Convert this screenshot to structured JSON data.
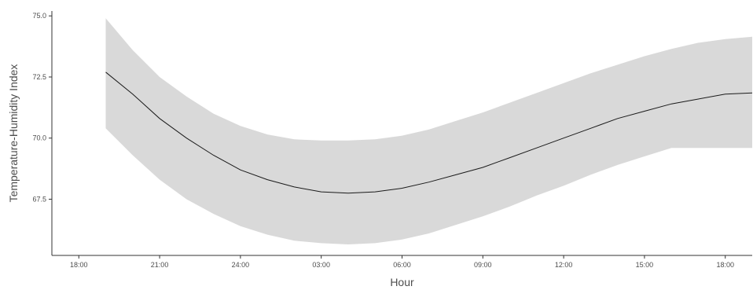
{
  "chart_data": {
    "type": "line",
    "title": "",
    "xlabel": "Hour",
    "ylabel": "Temperature-Humidity Index",
    "x_tick_labels": [
      "18:00",
      "21:00",
      "24:00",
      "03:00",
      "06:00",
      "09:00",
      "12:00",
      "15:00",
      "18:00"
    ],
    "x_tick_hours": [
      0,
      3,
      6,
      9,
      12,
      15,
      18,
      21,
      24
    ],
    "y_ticks": [
      67.5,
      70.0,
      72.5,
      75.0
    ],
    "y_tick_labels": [
      "67.5",
      "70.0",
      "72.5",
      "75.0"
    ],
    "xlim": [
      -1,
      25
    ],
    "ylim": [
      65.2,
      75.2
    ],
    "grid": false,
    "legend": "none",
    "series": [
      {
        "type": "smooth",
        "x": [
          1,
          2,
          3,
          4,
          5,
          6,
          7,
          8,
          9,
          10,
          11,
          12,
          13,
          14,
          15,
          16,
          17,
          18,
          19,
          20,
          21,
          22,
          23,
          24,
          25
        ],
        "values": [
          72.7,
          71.8,
          70.8,
          70.0,
          69.3,
          68.7,
          68.3,
          68.0,
          67.8,
          67.75,
          67.8,
          67.95,
          68.2,
          68.5,
          68.8,
          69.2,
          69.6,
          70.0,
          70.4,
          70.8,
          71.1,
          71.4,
          71.6,
          71.8,
          71.85
        ],
        "lower": [
          70.4,
          69.3,
          68.3,
          67.5,
          66.9,
          66.4,
          66.05,
          65.8,
          65.7,
          65.65,
          65.7,
          65.85,
          66.1,
          66.45,
          66.8,
          67.2,
          67.65,
          68.05,
          68.5,
          68.9,
          69.25,
          69.6,
          69.6,
          69.6,
          69.6
        ],
        "upper": [
          74.9,
          73.6,
          72.5,
          71.7,
          71.0,
          70.5,
          70.15,
          69.95,
          69.9,
          69.9,
          69.95,
          70.1,
          70.35,
          70.7,
          71.05,
          71.45,
          71.85,
          72.25,
          72.65,
          73.0,
          73.35,
          73.65,
          73.9,
          74.05,
          74.15
        ],
        "line_color": "#1a1a1a",
        "band_color": "#d9d9d9"
      }
    ]
  },
  "colors": {
    "axis": "#333333",
    "text": "#4d4d4d"
  }
}
